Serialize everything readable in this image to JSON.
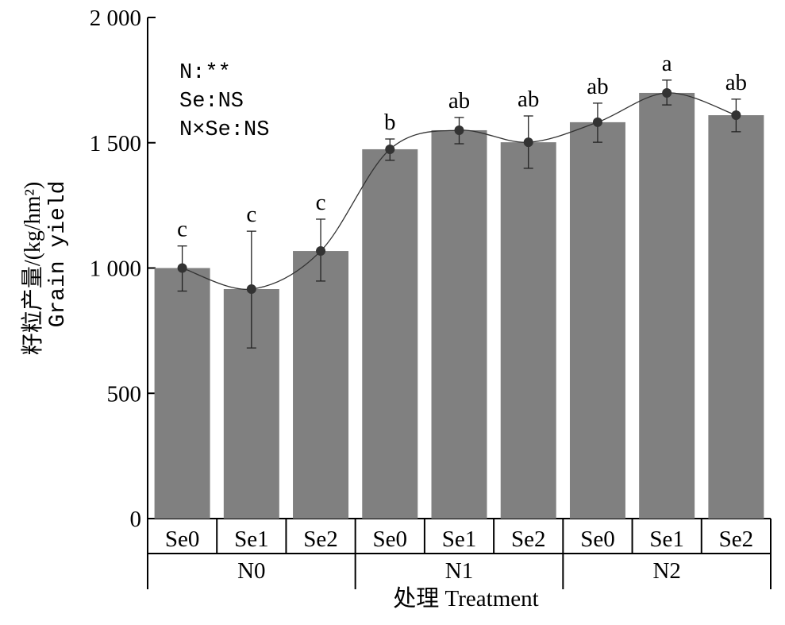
{
  "chart_data": {
    "type": "bar",
    "title": "",
    "xlabel": "处理 Treatment",
    "ylabel_cn": "籽粒产量/(kg/hm²)",
    "ylabel_en": "Grain yield",
    "ylim": [
      0,
      2000
    ],
    "yticks": [
      0,
      500,
      1000,
      1500,
      2000
    ],
    "ytick_labels": [
      "0",
      "500",
      "1 000",
      "1 500",
      "2 000"
    ],
    "groups": [
      "N0",
      "N1",
      "N2"
    ],
    "categories": [
      "Se0",
      "Se1",
      "Se2",
      "Se0",
      "Se1",
      "Se2",
      "Se0",
      "Se1",
      "Se2"
    ],
    "values": [
      1000,
      916,
      1068,
      1474,
      1550,
      1502,
      1582,
      1699,
      1610
    ],
    "error_low": [
      908,
      681,
      948,
      1430,
      1496,
      1398,
      1502,
      1651,
      1544
    ],
    "error_high": [
      1088,
      1147,
      1195,
      1515,
      1601,
      1607,
      1658,
      1750,
      1674
    ],
    "letters": [
      "c",
      "c",
      "c",
      "b",
      "ab",
      "ab",
      "ab",
      "a",
      "ab"
    ],
    "annotations": [
      "N:**",
      "Se:NS",
      "N×Se:NS"
    ],
    "grid": false,
    "bar_color": "#808080",
    "line_color": "#333333"
  }
}
